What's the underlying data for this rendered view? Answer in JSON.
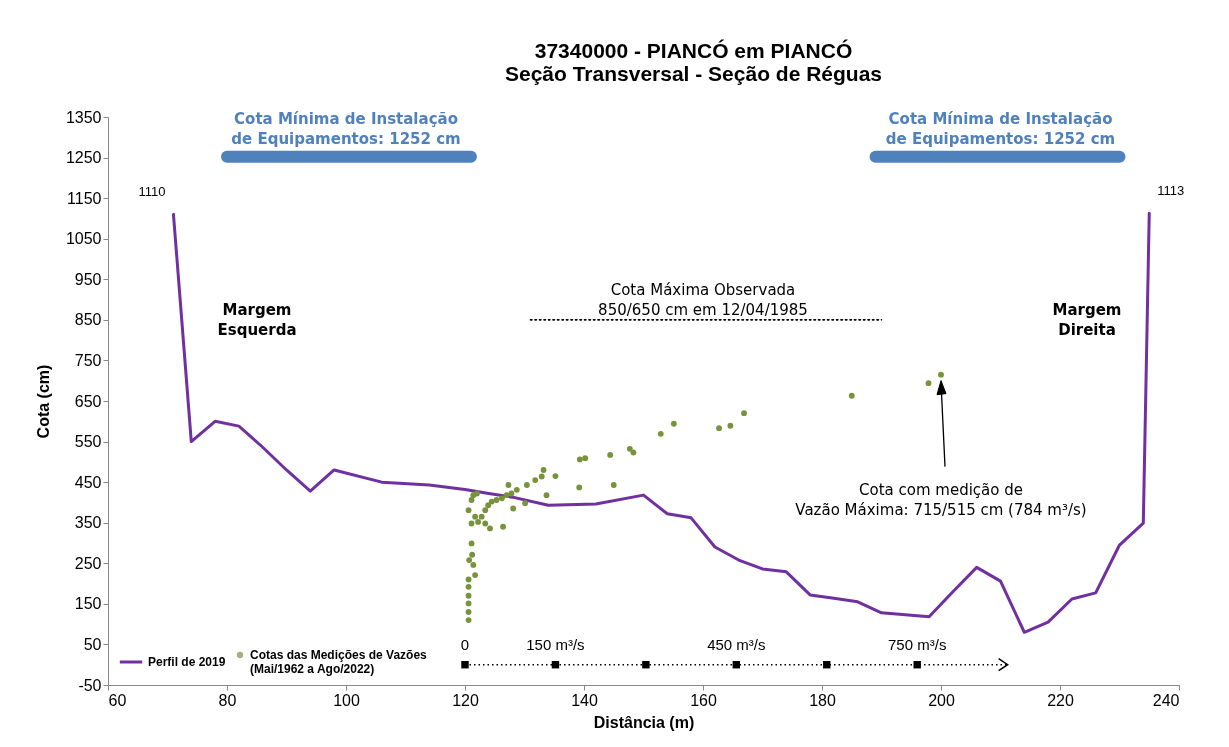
{
  "chart_data": {
    "type": "line",
    "title": "37340000 - PIANCÓ em PIANCÓ",
    "subtitle": "Seção Transversal - Seção de Réguas",
    "xlabel": "Distância (m)",
    "ylabel": "Cota (cm)",
    "xlim": [
      60,
      240
    ],
    "xticks": [
      60,
      80,
      100,
      120,
      140,
      160,
      180,
      200,
      220,
      240
    ],
    "ylim": [
      -50,
      1350
    ],
    "yticks": [
      -50,
      50,
      150,
      250,
      350,
      450,
      550,
      650,
      750,
      850,
      950,
      1050,
      1150,
      1250,
      1350
    ],
    "legend": "bottom left",
    "series": [
      {
        "name": "Perfil de 2019",
        "color": "#7030a0",
        "x": [
          71,
          74,
          78,
          82,
          86,
          90,
          94,
          98,
          106,
          114,
          120,
          124,
          128,
          134,
          142,
          150,
          154,
          158,
          162,
          166,
          170,
          174,
          178,
          182,
          186,
          190,
          198,
          202,
          206,
          210,
          214,
          218,
          222,
          226,
          230,
          234,
          235
        ],
        "values": [
          1110,
          550,
          600,
          588,
          536,
          480,
          428,
          480,
          450,
          443,
          432,
          422,
          413,
          393,
          396,
          418,
          372,
          362,
          290,
          258,
          236,
          229,
          172,
          164,
          155,
          128,
          118,
          180,
          240,
          206,
          80,
          105,
          162,
          177,
          295,
          349,
          1113
        ]
      },
      {
        "name": "Cotas das Medições de Vazões (Mai/1962 a Ago/2022)",
        "type": "scatter",
        "marker": "circle",
        "color": "#77933c",
        "x": [
          120.6,
          120.6,
          120.6,
          120.6,
          120.6,
          120.6,
          120.7,
          121.1,
          121.7,
          122.2,
          122.8,
          123.4,
          123.9,
          124.5,
          125.3,
          126.2,
          127,
          127.8,
          128.7,
          121.1,
          120.6,
          121.4,
          122,
          123.4,
          124.2,
          126.4,
          121.7,
          121.4,
          121.2,
          121.1,
          128.1,
          127.3,
          130.4,
          130.1,
          131.8,
          132.9,
          133.2,
          133.7,
          135.2,
          139.2,
          139.3,
          140.2,
          144.4,
          145,
          147.7,
          148.3,
          152.9,
          155.1,
          162.7,
          164.6,
          166.9,
          185,
          197.9,
          200
        ],
        "values": [
          110,
          130,
          151,
          170,
          192,
          210,
          258,
          348,
          365,
          352,
          365,
          381,
          393,
          402,
          406,
          410,
          418,
          422,
          431,
          406,
          381,
          418,
          422,
          348,
          336,
          340,
          221,
          246,
          271,
          299,
          385,
          443,
          443,
          398,
          455,
          464,
          480,
          418,
          465,
          437,
          506,
          509,
          517,
          443,
          532,
          523,
          569,
          594,
          583,
          589,
          620,
          663,
          694,
          715
        ]
      },
      {
        "color": "#4f81bd",
        "x": [
          80,
          121
        ],
        "values": [
          1252,
          1252
        ]
      },
      {
        "color": "#4f81bd",
        "x": [
          189,
          230
        ],
        "values": [
          1252,
          1252
        ]
      },
      {
        "line_style": "dotted",
        "color": "#000000",
        "x": [
          131,
          190
        ],
        "values": [
          850,
          850
        ]
      },
      {
        "type": "scatter",
        "marker": "square",
        "color": "#000000",
        "x": [
          120,
          135.2,
          150.4,
          165.6,
          180.8,
          196
        ],
        "values": [
          0,
          0,
          0,
          0,
          0,
          0
        ]
      }
    ],
    "annotations": [
      {
        "text": "1110",
        "x": 71,
        "y": 1110
      },
      {
        "text": "1113",
        "x": 235,
        "y": 1113
      },
      "Margem\nEsquerda",
      "Margem\nDireita",
      {
        "text": "Cota Máxima Observada\n850/650 cm em 12/04/1985",
        "x": 160,
        "y": 850
      },
      {
        "text": "Cota Mínima de Instalação\nde Equipamentos: 1252 cm",
        "x": 100,
        "y": 1252
      },
      {
        "text": "Cota Mínima de Instalação\nde Equipamentos: 1252 cm",
        "x": 210,
        "y": 1252
      },
      {
        "text": "Cota com medição de\nVazão Máxima: 715/515 cm (784 m³/s)",
        "x": 200,
        "y": 715
      },
      {
        "text": "0",
        "x": 120,
        "y": 0
      },
      {
        "text": "150 m³/s",
        "x": 135.2,
        "y": 0
      },
      {
        "text": "450 m³/s",
        "x": 165.6,
        "y": 0
      },
      {
        "text": "750 m³/s",
        "x": 196,
        "y": 0
      }
    ]
  }
}
